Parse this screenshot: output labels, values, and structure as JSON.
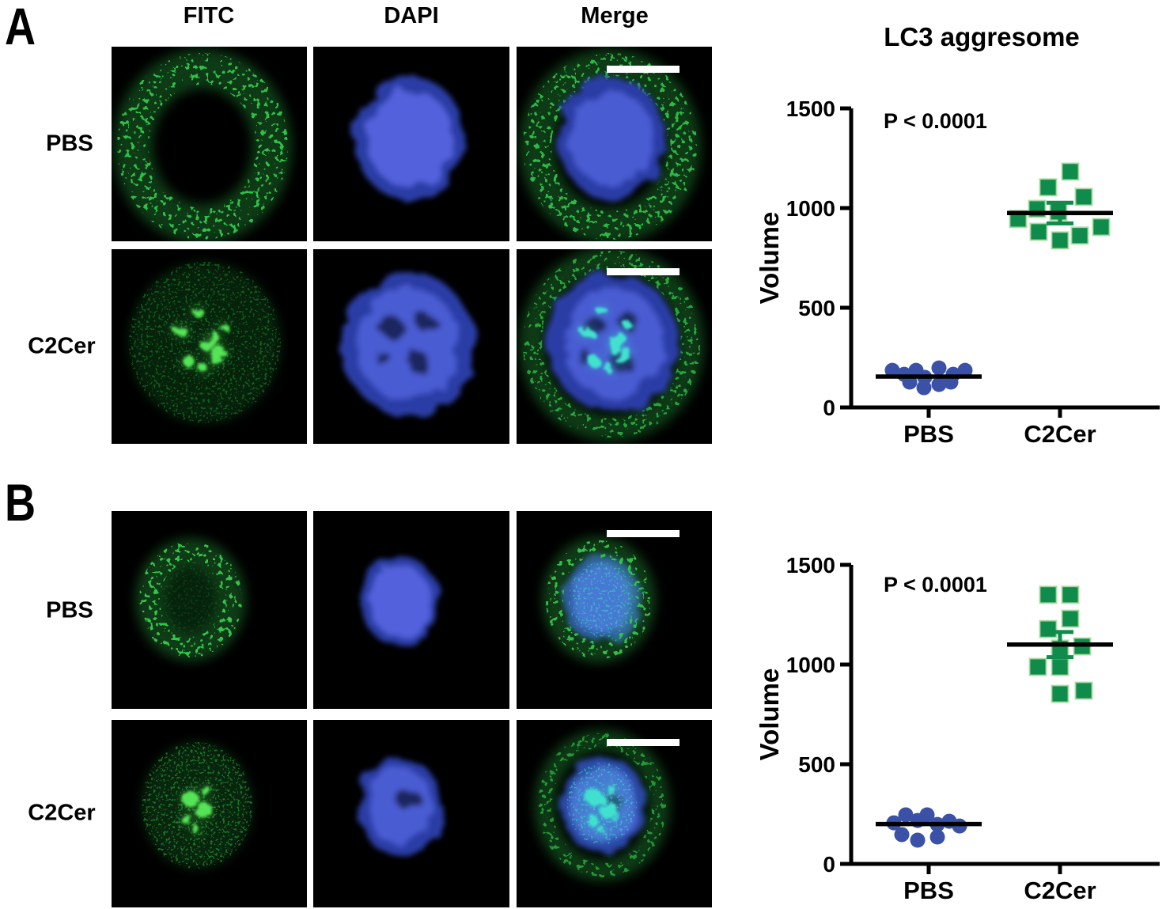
{
  "figure": {
    "background": "#ffffff"
  },
  "panels": [
    {
      "letter": "A",
      "column_headers": [
        "FITC",
        "DAPI",
        "Merge"
      ],
      "rows": [
        {
          "label": "PBS"
        },
        {
          "label": "C2Cer"
        }
      ]
    },
    {
      "letter": "B",
      "rows": [
        {
          "label": "PBS"
        },
        {
          "label": "C2Cer"
        }
      ]
    }
  ],
  "colors": {
    "pbs_marker": "#3a51a7",
    "c2cer_marker": "#0f8b4b",
    "c2cer_marker_edge": "#a8d9a0",
    "mean_line": "#000000",
    "fitc_green": "#2fc04a",
    "dapi_blue": "#4a5cd2",
    "merge_cyan": "#3fe2cf",
    "scale_bar": "#ffffff"
  },
  "chart_data": [
    {
      "type": "scatter",
      "title": "LC3 aggresome",
      "xlabel": "",
      "ylabel": "Volume",
      "ylim": [
        0,
        1500
      ],
      "yticks": [
        0,
        500,
        1000,
        1500
      ],
      "annotation": "P < 0.0001",
      "grid": false,
      "legend_position": "none",
      "categories": [
        "PBS",
        "C2Cer"
      ],
      "groups": [
        {
          "label": "PBS",
          "marker": "circle",
          "color": "#3a51a7",
          "mean": 155,
          "points": [
            {
              "v": 186,
              "dx": -46
            },
            {
              "v": 166,
              "dx": -31
            },
            {
              "v": 186,
              "dx": -16
            },
            {
              "v": 151,
              "dx": -5
            },
            {
              "v": 198,
              "dx": 13
            },
            {
              "v": 166,
              "dx": 31
            },
            {
              "v": 186,
              "dx": 46
            },
            {
              "v": 127,
              "dx": -24
            },
            {
              "v": 99,
              "dx": -6
            },
            {
              "v": 115,
              "dx": 13
            },
            {
              "v": 127,
              "dx": 28
            }
          ]
        },
        {
          "label": "C2Cer",
          "marker": "square",
          "color": "#0f8b4b",
          "mean": 975,
          "sem": 52,
          "points": [
            {
              "v": 1183,
              "dx": 13
            },
            {
              "v": 1104,
              "dx": -15
            },
            {
              "v": 1056,
              "dx": 30
            },
            {
              "v": 996,
              "dx": -29
            },
            {
              "v": 945,
              "dx": -53
            },
            {
              "v": 981,
              "dx": -2
            },
            {
              "v": 881,
              "dx": -27
            },
            {
              "v": 838,
              "dx": 0
            },
            {
              "v": 862,
              "dx": 25
            },
            {
              "v": 905,
              "dx": 52
            }
          ]
        }
      ]
    },
    {
      "type": "scatter",
      "title": "",
      "xlabel": "",
      "ylabel": "Volume",
      "ylim": [
        0,
        1500
      ],
      "yticks": [
        0,
        500,
        1000,
        1500
      ],
      "annotation": "P < 0.0001",
      "grid": false,
      "legend_position": "none",
      "categories": [
        "PBS",
        "C2Cer"
      ],
      "groups": [
        {
          "label": "PBS",
          "marker": "circle",
          "color": "#3a51a7",
          "mean": 200,
          "points": [
            {
              "v": 206,
              "dx": -44
            },
            {
              "v": 246,
              "dx": -29
            },
            {
              "v": 218,
              "dx": -14
            },
            {
              "v": 246,
              "dx": -2
            },
            {
              "v": 198,
              "dx": 11
            },
            {
              "v": 214,
              "dx": 26
            },
            {
              "v": 190,
              "dx": 39
            },
            {
              "v": 147,
              "dx": -34
            },
            {
              "v": 119,
              "dx": -14
            },
            {
              "v": 135,
              "dx": 11
            }
          ]
        },
        {
          "label": "C2Cer",
          "marker": "square",
          "color": "#0f8b4b",
          "mean": 1100,
          "sem": 63,
          "points": [
            {
              "v": 1350,
              "dx": -15
            },
            {
              "v": 1350,
              "dx": 13
            },
            {
              "v": 1230,
              "dx": 13
            },
            {
              "v": 1178,
              "dx": -15
            },
            {
              "v": 1091,
              "dx": 28
            },
            {
              "v": 988,
              "dx": -28
            },
            {
              "v": 988,
              "dx": 0
            },
            {
              "v": 1080,
              "dx": 0
            },
            {
              "v": 853,
              "dx": 0
            },
            {
              "v": 869,
              "dx": 30
            }
          ]
        }
      ]
    }
  ]
}
